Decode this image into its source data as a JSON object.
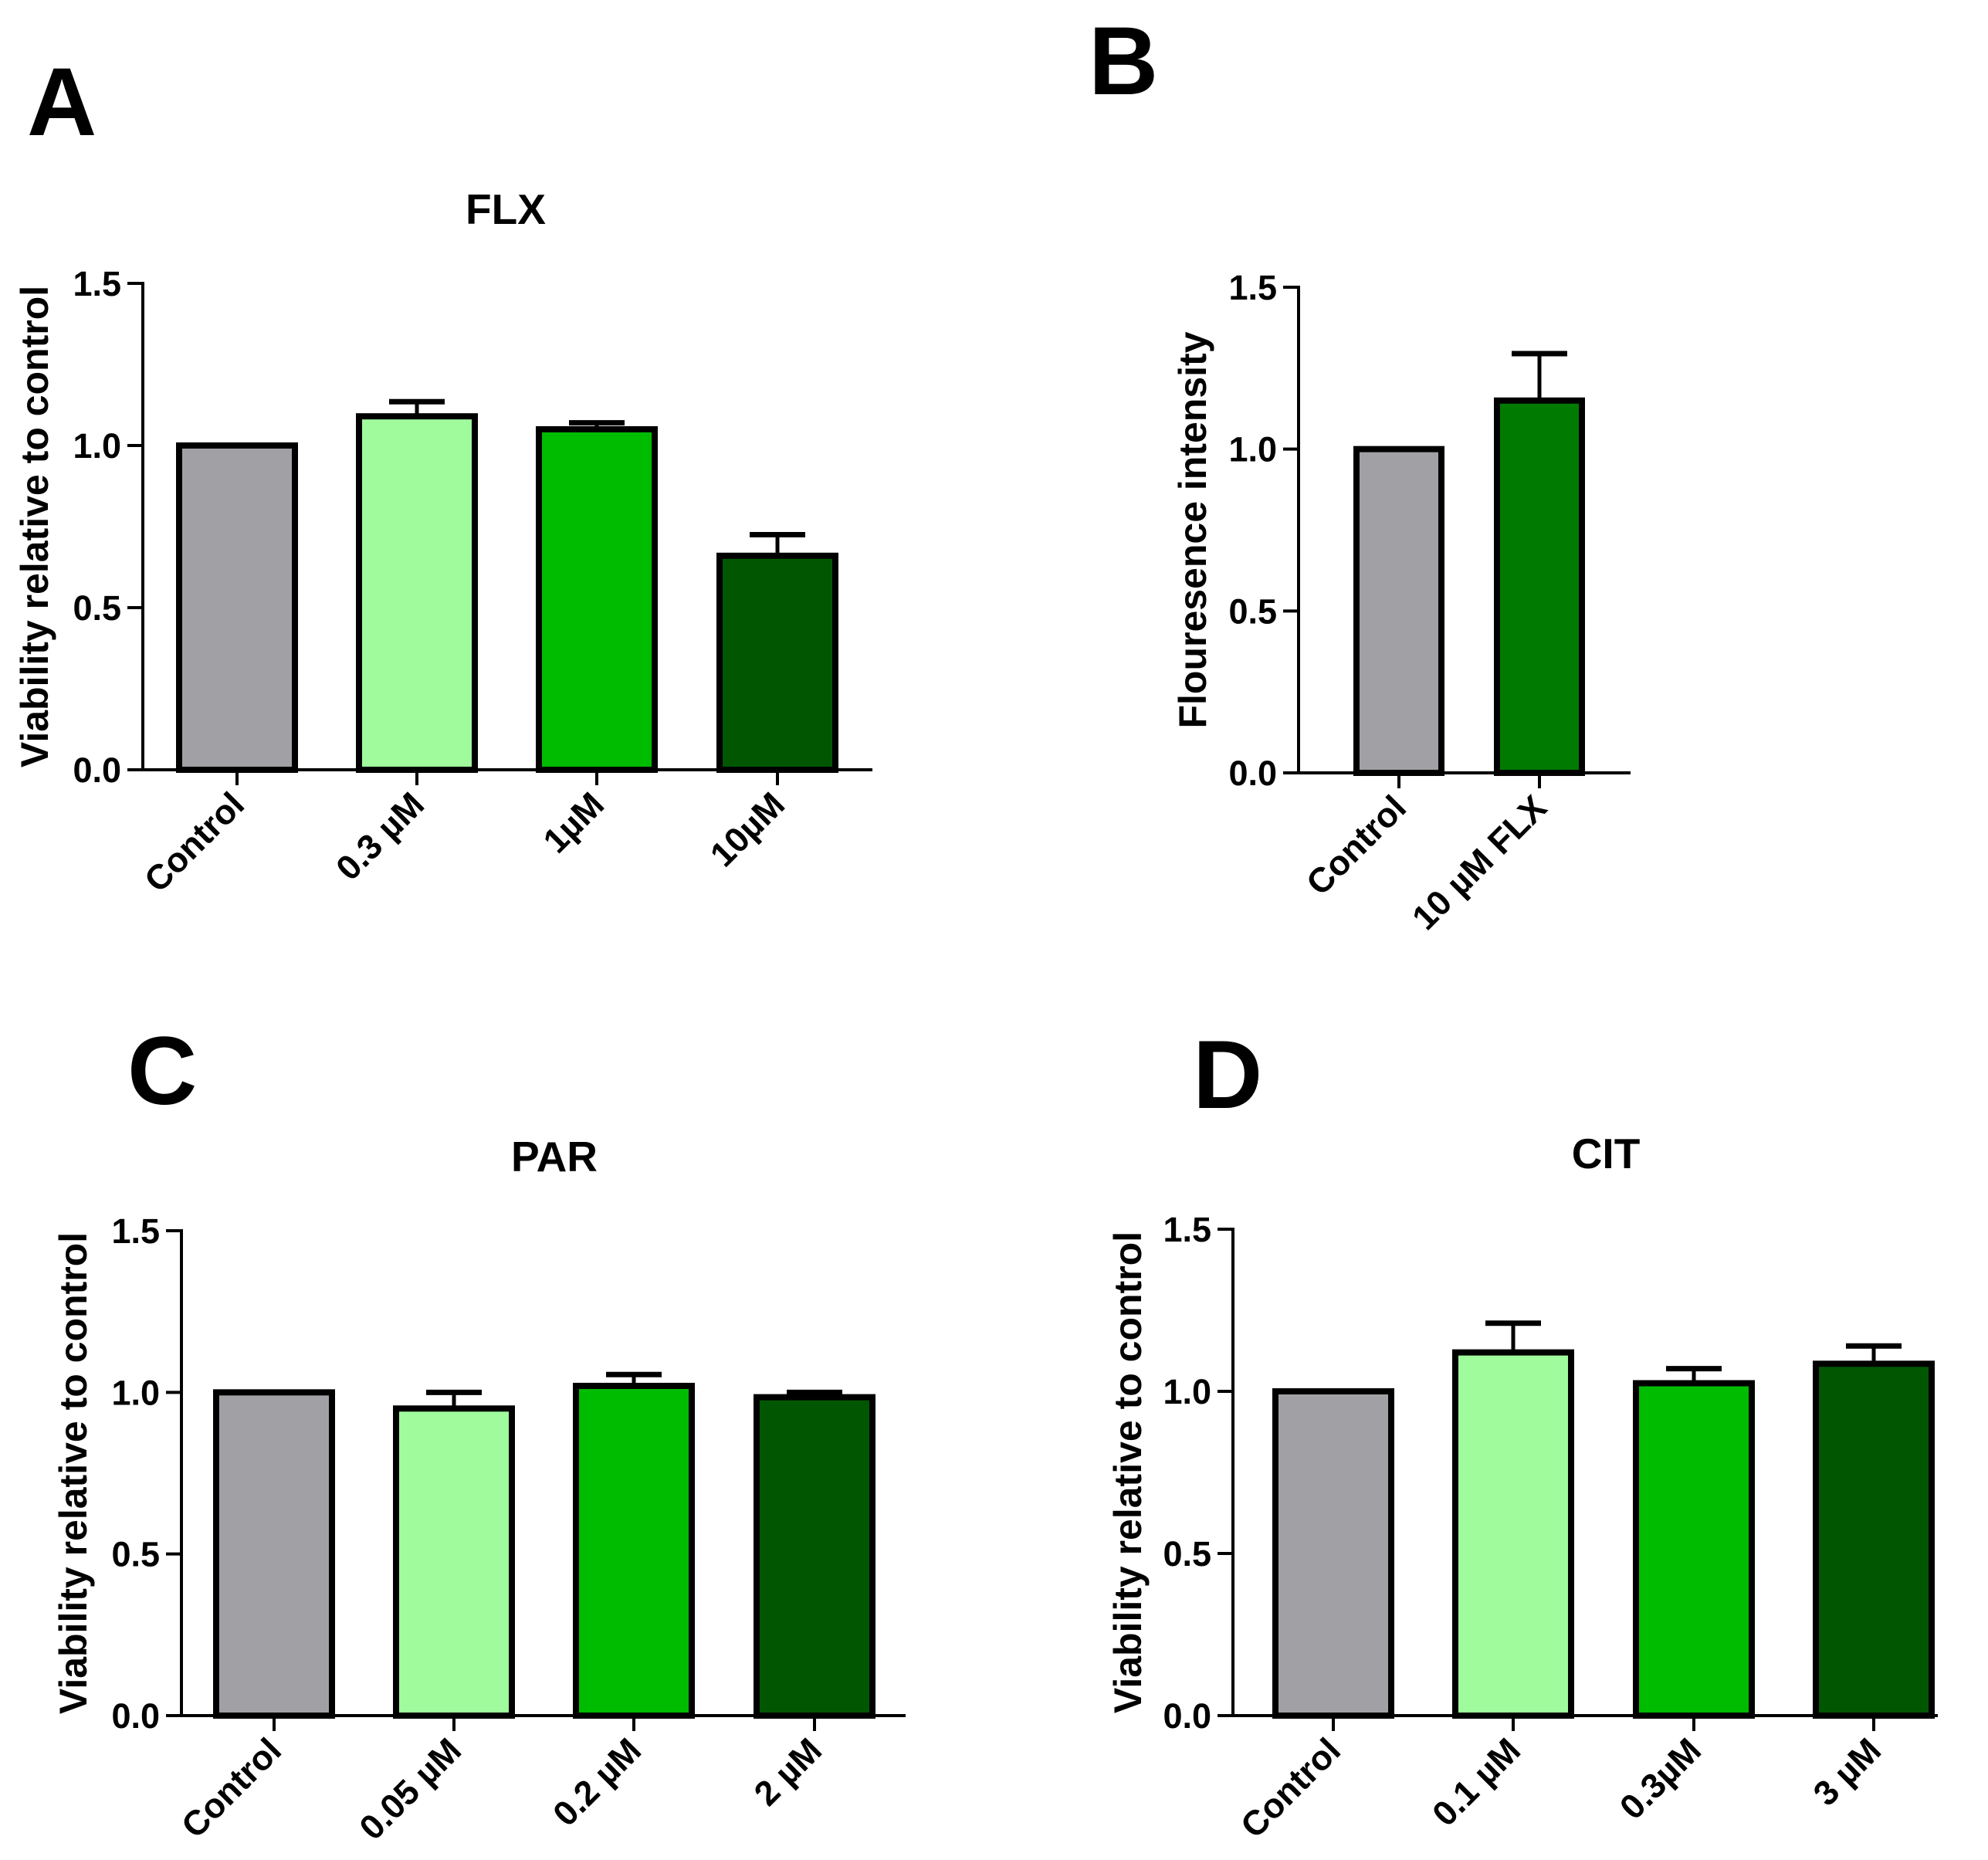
{
  "colors": {
    "control": "#a1a1a5",
    "light_green": "#9ffb9c",
    "medium_green": "#00bc00",
    "dark_green": "#015701",
    "b_treatment": "#017a01",
    "outline": "#000000"
  },
  "chart_data": [
    {
      "panel": "A",
      "type": "bar",
      "title": "FLX",
      "xlabel": "",
      "ylabel": "Viability relative to control",
      "ylim": [
        0,
        1.5
      ],
      "yticks": [
        "0.0",
        "0.5",
        "1.0",
        "1.5"
      ],
      "categories": [
        "Control",
        "0.3 µM",
        "1µM",
        "10µM"
      ],
      "values": [
        1.0,
        1.09,
        1.05,
        0.66
      ],
      "errors": [
        0,
        0.045,
        0.02,
        0.065
      ],
      "bar_colors": [
        "#a1a1a5",
        "#9ffb9c",
        "#00bc00",
        "#015701"
      ],
      "grid": false
    },
    {
      "panel": "B",
      "type": "bar",
      "title": "",
      "xlabel": "",
      "ylabel": "Flouresence intensity",
      "ylim": [
        0,
        1.5
      ],
      "yticks": [
        "0.0",
        "0.5",
        "1.0",
        "1.5"
      ],
      "categories": [
        "Control",
        "10 µM FLX"
      ],
      "values": [
        1.0,
        1.15
      ],
      "errors": [
        0,
        0.145
      ],
      "bar_colors": [
        "#a1a1a5",
        "#017a01"
      ],
      "grid": false
    },
    {
      "panel": "C",
      "type": "bar",
      "title": "PAR",
      "xlabel": "",
      "ylabel": "Viability relative to control",
      "ylim": [
        0,
        1.5
      ],
      "yticks": [
        "0.0",
        "0.5",
        "1.0",
        "1.5"
      ],
      "categories": [
        "Control",
        "0.05 µM",
        "0.2 µM",
        "2 µM"
      ],
      "values": [
        1.0,
        0.95,
        1.02,
        0.985
      ],
      "errors": [
        0,
        0.05,
        0.035,
        0.015
      ],
      "bar_colors": [
        "#a1a1a5",
        "#9ffb9c",
        "#00bc00",
        "#015701"
      ],
      "grid": false
    },
    {
      "panel": "D",
      "type": "bar",
      "title": "CIT",
      "xlabel": "",
      "ylabel": "Viability relative to control",
      "ylim": [
        0,
        1.5
      ],
      "yticks": [
        "0.0",
        "0.5",
        "1.0",
        "1.5"
      ],
      "categories": [
        "Control",
        "0.1 µM",
        "0.3µM",
        "3 µM"
      ],
      "values": [
        1.0,
        1.12,
        1.025,
        1.085
      ],
      "errors": [
        0,
        0.09,
        0.045,
        0.055
      ],
      "bar_colors": [
        "#a1a1a5",
        "#9ffb9c",
        "#00bc00",
        "#015701"
      ],
      "grid": false
    }
  ]
}
